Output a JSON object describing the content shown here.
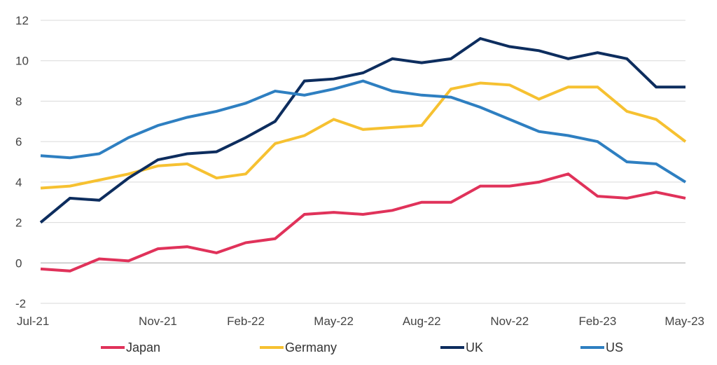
{
  "chart_data": {
    "type": "line",
    "title": "",
    "xlabel": "",
    "ylabel": "",
    "ylim": [
      -2,
      12
    ],
    "yticks": [
      -2,
      0,
      2,
      4,
      6,
      8,
      10,
      12
    ],
    "grid": true,
    "legend_position": "bottom",
    "x": [
      "Jul-21",
      "Aug-21",
      "Sep-21",
      "Oct-21",
      "Nov-21",
      "Dec-21",
      "Jan-22",
      "Feb-22",
      "Mar-22",
      "Apr-22",
      "May-22",
      "Jun-22",
      "Jul-22",
      "Aug-22",
      "Sep-22",
      "Oct-22",
      "Nov-22",
      "Dec-22",
      "Jan-23",
      "Feb-23",
      "Mar-23",
      "Apr-23",
      "May-23"
    ],
    "xtick_labels": [
      "Jul-21",
      "Nov-21",
      "Feb-22",
      "May-22",
      "Aug-22",
      "Nov-22",
      "Feb-23",
      "May-23"
    ],
    "xtick_indices": [
      0,
      4,
      7,
      10,
      13,
      16,
      19,
      22
    ],
    "series": [
      {
        "name": "Japan",
        "color": "#e0325a",
        "values": [
          -0.3,
          -0.4,
          0.2,
          0.1,
          0.7,
          0.8,
          0.5,
          1.0,
          1.2,
          2.4,
          2.5,
          2.4,
          2.6,
          3.0,
          3.0,
          3.8,
          3.8,
          4.0,
          4.4,
          3.3,
          3.2,
          3.5,
          3.2
        ]
      },
      {
        "name": "Germany",
        "color": "#f6c131",
        "values": [
          3.7,
          3.8,
          4.1,
          4.4,
          4.8,
          4.9,
          4.2,
          4.4,
          5.9,
          6.3,
          7.1,
          6.6,
          6.7,
          6.8,
          8.6,
          8.9,
          8.8,
          8.1,
          8.7,
          8.7,
          7.5,
          7.1,
          6.0
        ]
      },
      {
        "name": "UK",
        "color": "#0d2d5e",
        "values": [
          2.0,
          3.2,
          3.1,
          4.2,
          5.1,
          5.4,
          5.5,
          6.2,
          7.0,
          9.0,
          9.1,
          9.4,
          10.1,
          9.9,
          10.1,
          11.1,
          10.7,
          10.5,
          10.1,
          10.4,
          10.1,
          8.7,
          8.7
        ]
      },
      {
        "name": "US",
        "color": "#2e7fc1",
        "values": [
          5.3,
          5.2,
          5.4,
          6.2,
          6.8,
          7.2,
          7.5,
          7.9,
          8.5,
          8.3,
          8.6,
          9.0,
          8.5,
          8.3,
          8.2,
          7.7,
          7.1,
          6.5,
          6.3,
          6.0,
          5.0,
          4.9,
          4.0
        ]
      }
    ]
  }
}
